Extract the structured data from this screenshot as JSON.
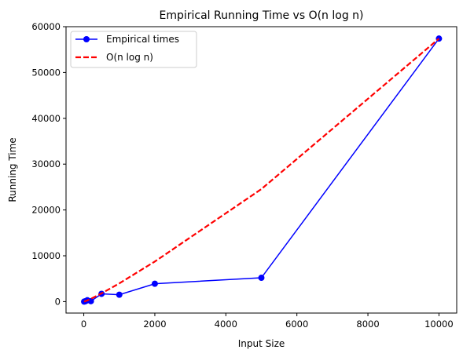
{
  "chart_data": {
    "type": "line",
    "title": "Empirical Running Time vs O(n log n)",
    "xlabel": "Input Size",
    "ylabel": "Running Time",
    "xlim": [
      -500,
      10500
    ],
    "ylim": [
      -2500,
      60000
    ],
    "xticks": [
      0,
      2000,
      4000,
      6000,
      8000,
      10000
    ],
    "yticks": [
      0,
      10000,
      20000,
      30000,
      40000,
      50000,
      60000
    ],
    "grid": false,
    "legend_position": "top-left",
    "series": [
      {
        "name": "Empirical times",
        "style": "solid-with-markers",
        "color": "#0000ff",
        "x": [
          10,
          50,
          100,
          200,
          500,
          1000,
          2000,
          5000,
          10000
        ],
        "y": [
          0,
          100,
          300,
          100,
          1700,
          1500,
          3900,
          5200,
          57400
        ]
      },
      {
        "name": "O(n log n)",
        "style": "dashed",
        "color": "#ff0000",
        "x": [
          10,
          50,
          100,
          200,
          500,
          1000,
          2000,
          5000,
          10000
        ],
        "y": [
          13,
          113,
          266,
          612,
          1795,
          3974,
          8743,
          24557,
          57400
        ]
      }
    ]
  }
}
